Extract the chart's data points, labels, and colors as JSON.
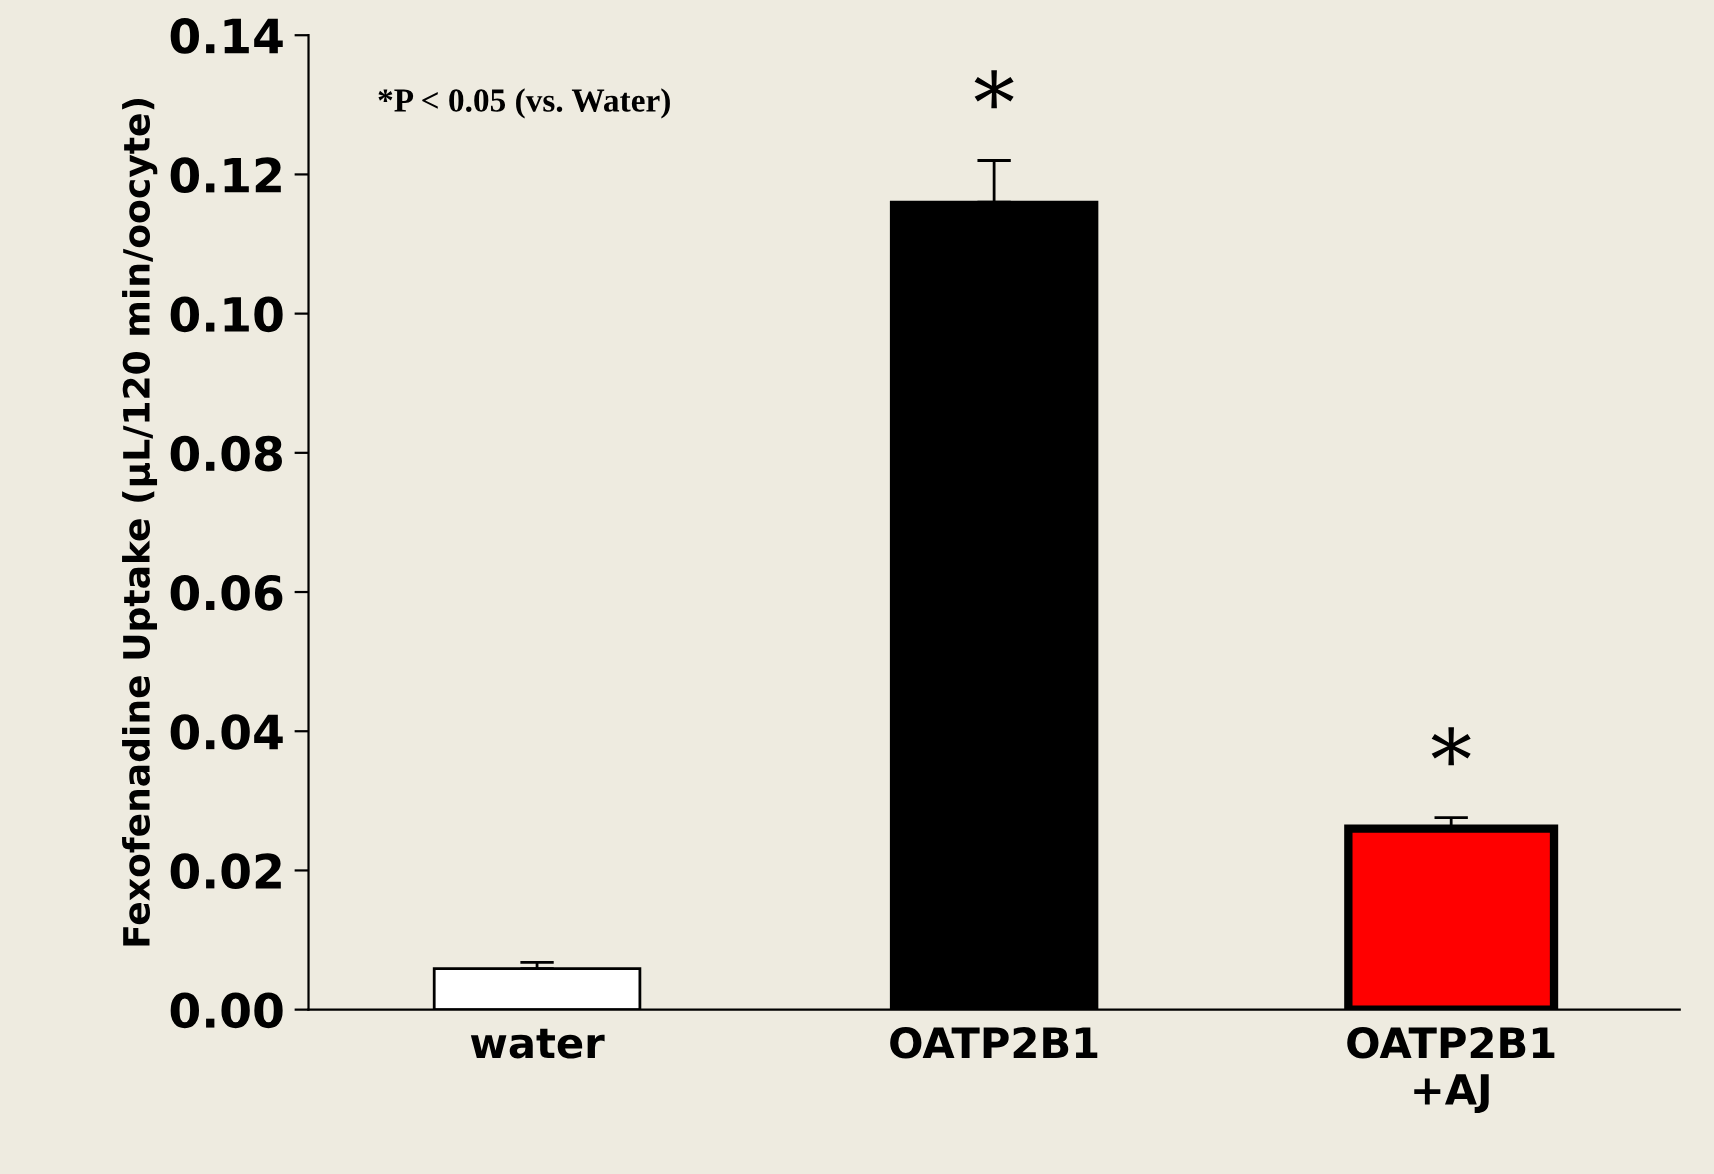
{
  "chart_data": {
    "type": "bar",
    "ylabel": "Fexofenadine Uptake (μL/120 min/oocyte)",
    "categories": [
      "water",
      "OATP2B1",
      "OATP2B1\n+AJ"
    ],
    "values": [
      0.0059,
      0.116,
      0.026
    ],
    "colors": [
      "#ffffff",
      "#000000",
      "#ff0000"
    ],
    "errors": [
      [
        0.0059,
        0.0068
      ],
      [
        0.116,
        0.122
      ],
      [
        0.026,
        0.0276
      ]
    ],
    "ylim": [
      0,
      0.14
    ],
    "yticks": [
      {
        "value": 0,
        "label": "0.00"
      },
      {
        "value": 0.02,
        "label": "0.02"
      },
      {
        "value": 0.04,
        "label": "0.04"
      },
      {
        "value": 0.06,
        "label": "0.06"
      },
      {
        "value": 0.08,
        "label": "0.08"
      },
      {
        "value": 0.1,
        "label": "0.10"
      },
      {
        "value": 0.12,
        "label": "0.12"
      },
      {
        "value": 0.14,
        "label": "0.14"
      }
    ],
    "annotations": [
      "*P < 0.05 (vs. Water)",
      {
        "text": "*",
        "x": "OATP2B1",
        "y": 0.122
      },
      {
        "text": "*",
        "x": "OATP2B1\n+AJ",
        "y": 0.0276
      }
    ],
    "grid": false,
    "legend": false
  }
}
